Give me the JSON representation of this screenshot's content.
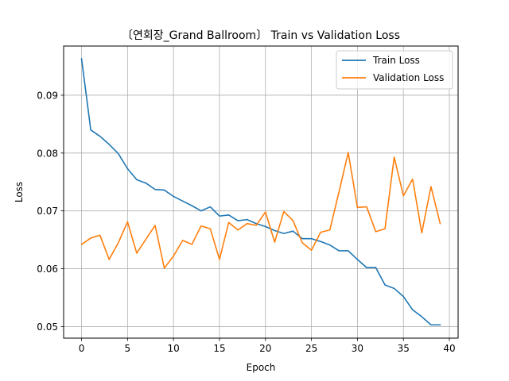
{
  "chart_data": {
    "type": "line",
    "title": "〔연회장_Grand Ballroom〕 Train vs Validation Loss",
    "xlabel": "Epoch",
    "ylabel": "Loss",
    "xlim": [
      -1.95,
      40.95
    ],
    "ylim": [
      0.048,
      0.0985
    ],
    "grid": true,
    "legend_position": "top-right",
    "x_ticks": [
      0,
      5,
      10,
      15,
      20,
      25,
      30,
      35,
      40
    ],
    "y_ticks": [
      0.05,
      0.06,
      0.07,
      0.08,
      0.09
    ],
    "y_tick_labels": [
      "0.05",
      "0.06",
      "0.07",
      "0.08",
      "0.09"
    ],
    "x": [
      0,
      1,
      2,
      3,
      4,
      5,
      6,
      7,
      8,
      9,
      10,
      11,
      12,
      13,
      14,
      15,
      16,
      17,
      18,
      19,
      20,
      21,
      22,
      23,
      24,
      25,
      26,
      27,
      28,
      29,
      30,
      31,
      32,
      33,
      34,
      35,
      36,
      37,
      38,
      39
    ],
    "series": [
      {
        "name": "Train Loss",
        "color": "#1f77b4",
        "values": [
          0.0963,
          0.084,
          0.0829,
          0.0815,
          0.0799,
          0.0773,
          0.0754,
          0.0748,
          0.0737,
          0.0736,
          0.0725,
          0.0717,
          0.0709,
          0.07,
          0.0707,
          0.0691,
          0.0693,
          0.0683,
          0.0685,
          0.0678,
          0.0673,
          0.0666,
          0.0661,
          0.0665,
          0.0652,
          0.0652,
          0.0647,
          0.0641,
          0.0631,
          0.0631,
          0.0616,
          0.0602,
          0.0602,
          0.0572,
          0.0566,
          0.0552,
          0.0529,
          0.0517,
          0.0503,
          0.0503
        ]
      },
      {
        "name": "Validation Loss",
        "color": "#ff7f0e",
        "values": [
          0.0642,
          0.0653,
          0.0658,
          0.0616,
          0.0645,
          0.0681,
          0.0627,
          0.0651,
          0.0675,
          0.0601,
          0.0622,
          0.0649,
          0.0642,
          0.0674,
          0.0669,
          0.0616,
          0.068,
          0.0667,
          0.0678,
          0.0675,
          0.0698,
          0.0646,
          0.0699,
          0.0683,
          0.0645,
          0.0632,
          0.0663,
          0.0667,
          0.0733,
          0.0801,
          0.0706,
          0.0707,
          0.0664,
          0.0669,
          0.0793,
          0.0726,
          0.0755,
          0.0662,
          0.0742,
          0.0678
        ]
      }
    ]
  }
}
